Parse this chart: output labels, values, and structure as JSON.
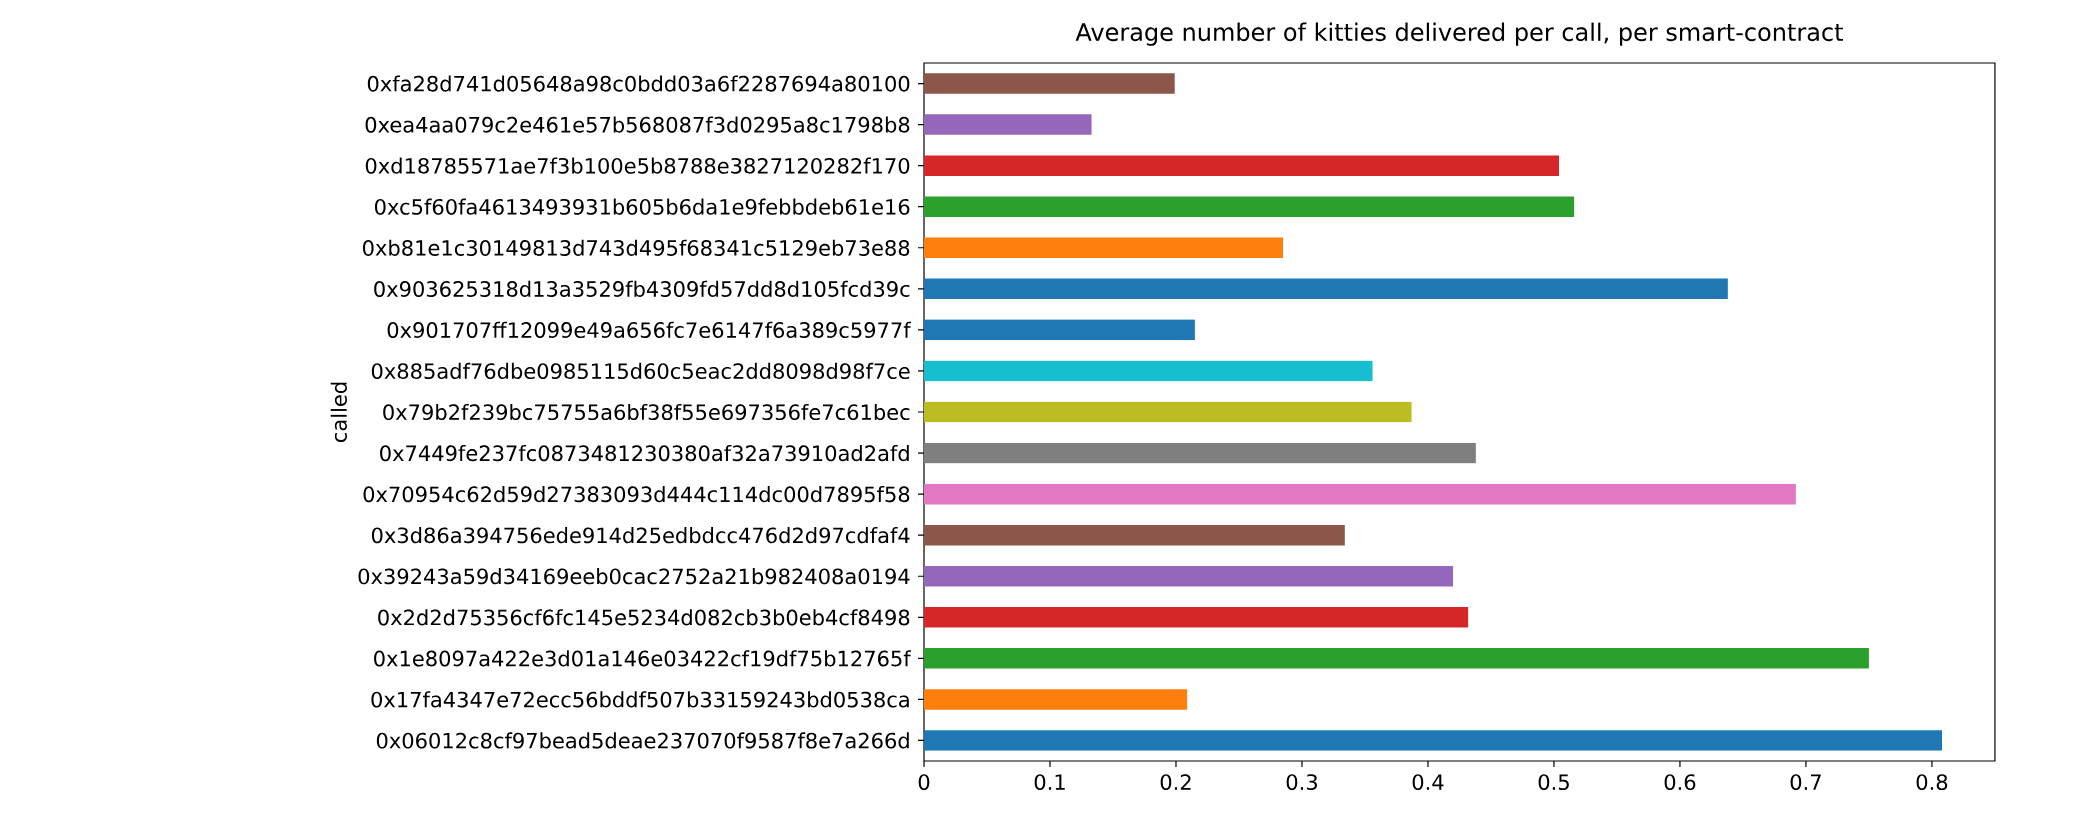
{
  "chart_data": {
    "type": "bar",
    "orientation": "horizontal",
    "title": "Average number of kitties delivered per call, per smart-contract",
    "ylabel": "called",
    "categories": [
      "0xfa28d741d05648a98c0bdd03a6f2287694a80100",
      "0xea4aa079c2e461e57b568087f3d0295a8c1798b8",
      "0xd18785571ae7f3b100e5b8788e3827120282f170",
      "0xc5f60fa4613493931b605b6da1e9febbdeb61e16",
      "0xb81e1c30149813d743d495f68341c5129eb73e88",
      "0x903625318d13a3529fb4309fd57dd8d105fcd39c",
      "0x901707ff12099e49a656fc7e6147f6a389c5977f",
      "0x885adf76dbe0985115d60c5eac2dd8098d98f7ce",
      "0x79b2f239bc75755a6bf38f55e697356fe7c61bec",
      "0x7449fe237fc0873481230380af32a73910ad2afd",
      "0x70954c62d59d27383093d444c114dc00d7895f58",
      "0x3d86a394756ede914d25edbdcc476d2d97cdfaf4",
      "0x39243a59d34169eeb0cac2752a21b982408a0194",
      "0x2d2d75356cf6fc145e5234d082cb3b0eb4cf8498",
      "0x1e8097a422e3d01a146e03422cf19df75b12765f",
      "0x17fa4347e72ecc56bddf507b33159243bd0538ca",
      "0x06012c8cf97bead5deae237070f9587f8e7a266d"
    ],
    "values": [
      0.199,
      0.133,
      0.504,
      0.516,
      0.285,
      0.638,
      0.215,
      0.356,
      0.387,
      0.438,
      0.692,
      0.334,
      0.42,
      0.432,
      0.75,
      0.209,
      0.808
    ],
    "colors": [
      "#8c564b",
      "#9467bd",
      "#d62728",
      "#2ca02c",
      "#ff7f0e",
      "#1f77b4",
      "#1f77b4",
      "#17becf",
      "#bcbd22",
      "#7f7f7f",
      "#e377c2",
      "#8c564b",
      "#9467bd",
      "#d62728",
      "#2ca02c",
      "#ff7f0e",
      "#1f77b4"
    ],
    "xlim": [
      0,
      0.85
    ],
    "xticks": [
      0,
      0.1,
      0.2,
      0.3,
      0.4,
      0.5,
      0.6,
      0.7,
      0.8
    ]
  }
}
